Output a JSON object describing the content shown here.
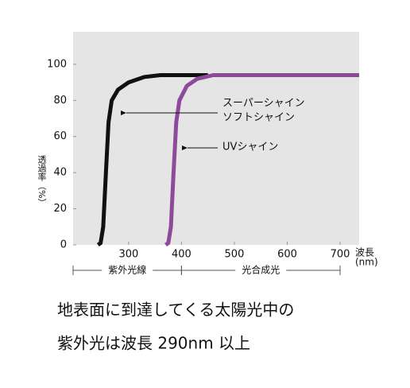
{
  "chart_data": {
    "type": "line",
    "y_label": "透過率（%）",
    "x_label": "波長",
    "x_unit": "(nm)",
    "xlim": [
      195,
      736
    ],
    "ylim": [
      0,
      118
    ],
    "xticks": [
      300,
      400,
      500,
      600,
      700
    ],
    "yticks": [
      0,
      20,
      40,
      60,
      80,
      100
    ],
    "background": "#e5e5e5",
    "series": [
      {
        "labels": [
          "スーパーシャイン",
          "ソフトシャイン"
        ],
        "color": "#111111",
        "x": [
          242,
          247,
          252,
          257,
          262,
          268,
          280,
          300,
          330,
          360,
          450
        ],
        "values": [
          0,
          1,
          10,
          40,
          68,
          80,
          86,
          90,
          93,
          94,
          94
        ]
      },
      {
        "labels": [
          "UVシャイン"
        ],
        "color": "#8e4a9a",
        "x": [
          370,
          375,
          380,
          385,
          390,
          396,
          410,
          430,
          460,
          736
        ],
        "values": [
          0,
          1,
          10,
          40,
          68,
          80,
          88,
          92,
          94,
          94
        ]
      }
    ],
    "regions": [
      {
        "label": "紫外光線",
        "range": [
          195,
          400
        ]
      },
      {
        "label": "光合成光",
        "range": [
          400,
          700
        ]
      }
    ],
    "caption": [
      "地表面に到達してくる太陽光中の",
      "紫外光は波長 290nm 以上"
    ]
  }
}
